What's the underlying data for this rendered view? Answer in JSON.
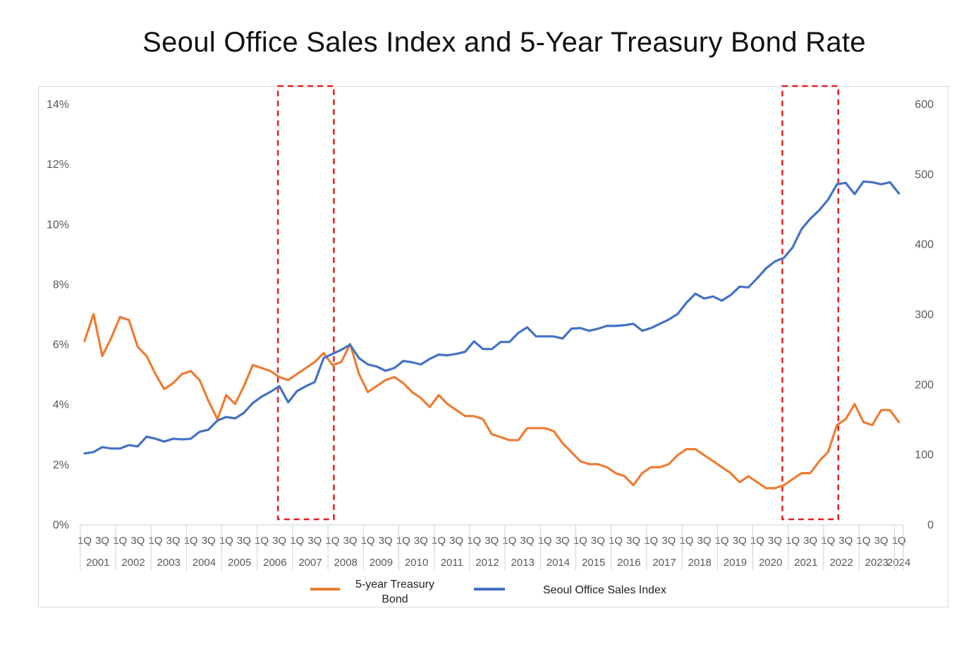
{
  "title": "Seoul Office Sales Index and 5-Year Treasury Bond Rate",
  "chart_data": {
    "type": "line",
    "title": "Seoul Office Sales Index and 5-Year Treasury Bond Rate",
    "x_quarter_labels": [
      "1Q",
      "3Q"
    ],
    "x_last_quarter_label": "1Q",
    "years": [
      "2001",
      "2002",
      "2003",
      "2004",
      "2005",
      "2006",
      "2007",
      "2008",
      "2009",
      "2010",
      "2011",
      "2012",
      "2013",
      "2014",
      "2015",
      "2016",
      "2017",
      "2018",
      "2019",
      "2020",
      "2021",
      "2022",
      "2023",
      "2024"
    ],
    "left_axis": {
      "ticks": [
        "0%",
        "2%",
        "4%",
        "6%",
        "8%",
        "10%",
        "12%",
        "14%"
      ],
      "min": 0,
      "max": 14
    },
    "right_axis": {
      "ticks": [
        "0",
        "100",
        "200",
        "300",
        "400",
        "500",
        "600"
      ],
      "min": 0,
      "max": 600
    },
    "x_start": "2001 1Q",
    "x_end": "2024 1Q",
    "series": [
      {
        "name": "5-year Treasury Bond",
        "axis": "left",
        "color": "#ED7D31",
        "values": [
          6.1,
          7.0,
          5.6,
          6.2,
          6.9,
          6.8,
          5.9,
          5.6,
          5.0,
          4.5,
          4.7,
          5.0,
          5.1,
          4.8,
          4.1,
          3.5,
          4.3,
          4.0,
          4.6,
          5.3,
          5.2,
          5.1,
          4.9,
          4.8,
          5.0,
          5.2,
          5.4,
          5.7,
          5.3,
          5.4,
          6.0,
          5.0,
          4.4,
          4.6,
          4.8,
          4.9,
          4.7,
          4.4,
          4.2,
          3.9,
          4.3,
          4.0,
          3.8,
          3.6,
          3.6,
          3.5,
          3.0,
          2.9,
          2.8,
          2.8,
          3.2,
          3.2,
          3.2,
          3.1,
          2.7,
          2.4,
          2.1,
          2.0,
          2.0,
          1.9,
          1.7,
          1.6,
          1.3,
          1.7,
          1.9,
          1.9,
          2.0,
          2.3,
          2.5,
          2.5,
          2.3,
          2.1,
          1.9,
          1.7,
          1.4,
          1.6,
          1.4,
          1.2,
          1.2,
          1.3,
          1.5,
          1.7,
          1.7,
          2.1,
          2.4,
          3.3,
          3.5,
          4.0,
          3.4,
          3.3,
          3.8,
          3.8,
          3.4
        ]
      },
      {
        "name": "Seoul Office Sales Index",
        "axis": "right",
        "color": "#4472C4",
        "values": [
          101,
          103,
          110,
          108,
          108,
          113,
          111,
          125,
          122,
          118,
          122,
          121,
          122,
          132,
          135,
          148,
          153,
          151,
          159,
          173,
          182,
          189,
          197,
          174,
          190,
          197,
          203,
          237,
          243,
          249,
          256,
          237,
          228,
          225,
          219,
          223,
          233,
          231,
          228,
          236,
          242,
          241,
          243,
          246,
          261,
          250,
          250,
          260,
          260,
          273,
          281,
          268,
          268,
          268,
          265,
          279,
          280,
          276,
          279,
          283,
          283,
          284,
          286,
          276,
          280,
          286,
          292,
          300,
          316,
          329,
          322,
          325,
          319,
          327,
          339,
          338,
          351,
          365,
          375,
          380,
          395,
          421,
          436,
          448,
          463,
          485,
          487,
          471,
          489,
          488,
          485,
          488,
          472
        ]
      }
    ],
    "legend": [
      "5-year Treasury Bond",
      "Seoul Office Sales Index"
    ],
    "legend_position": "bottom",
    "highlight_boxes": [
      {
        "from": "2006 3Q",
        "to": "2008 1Q",
        "color": "#E02020"
      },
      {
        "from": "2020 4Q",
        "to": "2022 2Q",
        "color": "#E02020"
      }
    ],
    "grid": false
  }
}
